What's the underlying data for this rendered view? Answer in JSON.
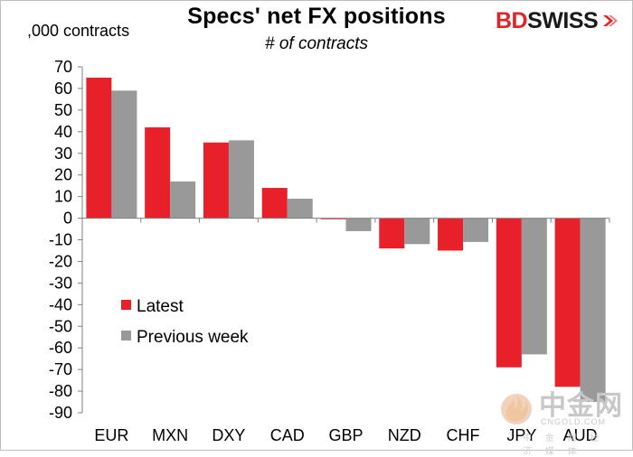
{
  "header": {
    "title": "Specs' net FX positions",
    "subtitle": "# of contracts",
    "y_unit": ",000 contracts"
  },
  "brand": {
    "logo_bd": "BD",
    "logo_swiss": "SWISS"
  },
  "watermark": {
    "cn": "中金网",
    "en": "CNGOLD.COM",
    "tag": "中 金 网 经 济 媒 体"
  },
  "colors": {
    "latest": "#e8202a",
    "previous": "#999999",
    "axis": "#808080"
  },
  "chart_data": {
    "type": "bar",
    "title": "Specs' net FX positions",
    "subtitle": "# of contracts",
    "ylabel": ",000 contracts",
    "xlabel": "",
    "categories": [
      "EUR",
      "MXN",
      "DXY",
      "CAD",
      "GBP",
      "NZD",
      "CHF",
      "JPY",
      "AUD"
    ],
    "series": [
      {
        "name": "Latest",
        "values": [
          65,
          42,
          35,
          14,
          -0.5,
          -14,
          -15,
          -69,
          -78
        ]
      },
      {
        "name": "Previous week",
        "values": [
          59,
          17,
          36,
          9,
          -6,
          -12,
          -11,
          -63,
          -85
        ]
      }
    ],
    "ylim": [
      -90,
      70
    ],
    "yticks": [
      70,
      60,
      50,
      40,
      30,
      20,
      10,
      0,
      -10,
      -20,
      -30,
      -40,
      -50,
      -60,
      -70,
      -80,
      -90
    ],
    "grid": false,
    "legend": "inside-lower-left"
  }
}
